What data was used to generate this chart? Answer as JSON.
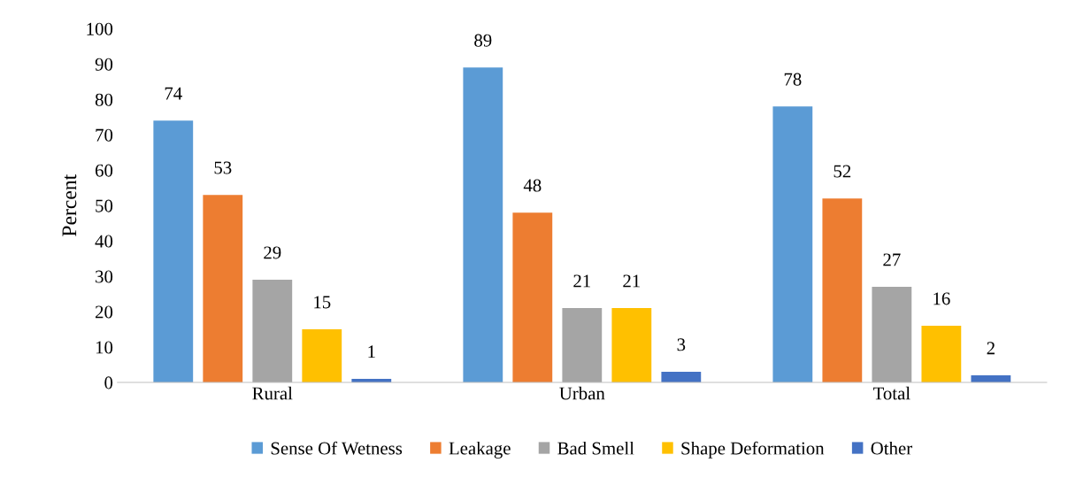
{
  "chart_data": {
    "type": "bar",
    "ylabel": "Percent",
    "categories": [
      "Rural",
      "Urban",
      "Total"
    ],
    "series": [
      {
        "name": "Sense Of Wetness",
        "color": "#5b9bd5",
        "values": [
          74,
          89,
          78
        ]
      },
      {
        "name": "Leakage",
        "color": "#ed7d31",
        "values": [
          53,
          48,
          52
        ]
      },
      {
        "name": "Bad Smell",
        "color": "#a5a5a5",
        "values": [
          29,
          21,
          27
        ]
      },
      {
        "name": "Shape Deformation",
        "color": "#ffc000",
        "values": [
          15,
          21,
          16
        ]
      },
      {
        "name": "Other",
        "color": "#4472c4",
        "values": [
          1,
          3,
          2
        ]
      }
    ],
    "ylim": [
      0,
      100
    ],
    "yticks": [
      0,
      10,
      20,
      30,
      40,
      50,
      60,
      70,
      80,
      90,
      100
    ],
    "data_labels": true,
    "grid": false,
    "legend": "bottom"
  }
}
